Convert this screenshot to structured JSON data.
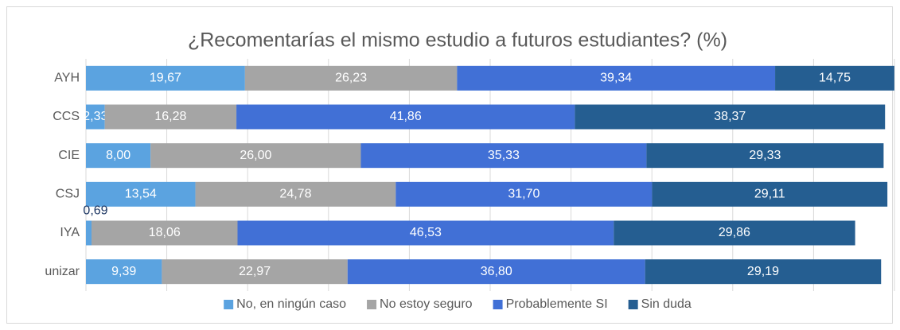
{
  "chart_data": {
    "type": "stacked_bar_horizontal",
    "title": "¿Recomentarías el mismo estudio a futuros estudiantes? (%)",
    "categories": [
      "AYH",
      "CCS",
      "CIE",
      "CSJ",
      "IYA",
      "unizar"
    ],
    "series": [
      {
        "name": "No, en ningún caso",
        "color": "#5ba3e0",
        "values": [
          19.67,
          2.33,
          8.0,
          13.54,
          0.69,
          9.39
        ],
        "value_labels": [
          "19,67",
          "2,33",
          "8,00",
          "13,54",
          "0,69",
          "9,39"
        ]
      },
      {
        "name": "No estoy seguro",
        "color": "#a5a5a5",
        "values": [
          26.23,
          16.28,
          26.0,
          24.78,
          18.06,
          22.97
        ],
        "value_labels": [
          "26,23",
          "16,28",
          "26,00",
          "24,78",
          "18,06",
          "22,97"
        ]
      },
      {
        "name": "Probablemente SI",
        "color": "#4170d6",
        "values": [
          39.34,
          41.86,
          35.33,
          31.7,
          46.53,
          36.8
        ],
        "value_labels": [
          "39,34",
          "41,86",
          "35,33",
          "31,70",
          "46,53",
          "36,80"
        ]
      },
      {
        "name": "Sin duda",
        "color": "#255e91",
        "values": [
          14.75,
          38.37,
          29.33,
          29.11,
          29.86,
          29.19
        ],
        "value_labels": [
          "14,75",
          "38,37",
          "29,33",
          "29,11",
          "29,86",
          "29,19"
        ]
      }
    ],
    "xlim": [
      0,
      100
    ],
    "xticks": [
      0,
      10,
      20,
      30,
      40,
      50,
      60,
      70,
      80,
      90,
      100
    ],
    "grid": true,
    "legend": "bottom"
  }
}
